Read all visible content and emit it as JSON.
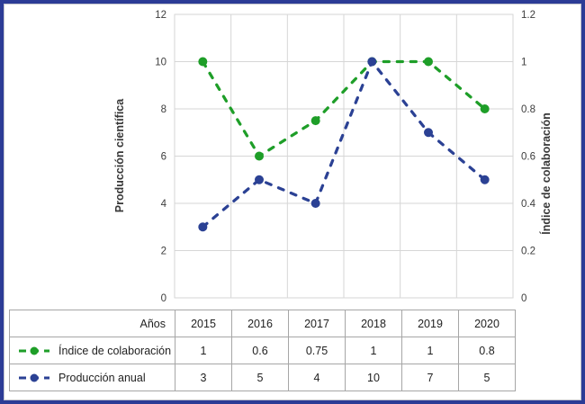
{
  "chart": {
    "left_axis_title": "Producción científica",
    "right_axis_title": "Índice de colaboración",
    "left_tick_labels": [
      "0",
      "2",
      "4",
      "6",
      "8",
      "10",
      "12"
    ],
    "right_tick_labels": [
      "0",
      "0.2",
      "0.4",
      "0.6",
      "0.8",
      "1",
      "1.2"
    ]
  },
  "chart_data": {
    "type": "line",
    "categories": [
      "2015",
      "2016",
      "2017",
      "2018",
      "2019",
      "2020"
    ],
    "series": [
      {
        "name": "Índice de colaboración",
        "axis": "right",
        "color": "#1e9e28",
        "line_style": "dashed",
        "marker": "circle",
        "values": [
          1,
          0.6,
          0.75,
          1,
          1,
          0.8
        ]
      },
      {
        "name": "Producción anual",
        "axis": "left",
        "color": "#2b4194",
        "line_style": "dashed",
        "marker": "circle",
        "values": [
          3,
          5,
          4,
          10,
          7,
          5
        ]
      }
    ],
    "title": "",
    "xlabel": "Años",
    "ylabel_left": "Producción científica",
    "ylabel_right": "Índice de colaboración",
    "ylim_left": [
      0,
      12
    ],
    "ylim_right": [
      0,
      1.2
    ],
    "grid": true,
    "legend_position": "table-below"
  },
  "table": {
    "row_header_label": "Años",
    "year_columns": [
      "2015",
      "2016",
      "2017",
      "2018",
      "2019",
      "2020"
    ],
    "rows": [
      {
        "label": "Índice de colaboración",
        "series_color": "#1e9e28",
        "values": [
          "1",
          "0.6",
          "0.75",
          "1",
          "1",
          "0.8"
        ]
      },
      {
        "label": "Producción anual",
        "series_color": "#2b4194",
        "values": [
          "3",
          "5",
          "4",
          "10",
          "7",
          "5"
        ]
      }
    ]
  },
  "colors": {
    "green_series": "#1e9e28",
    "blue_series": "#2b4194",
    "frame_border": "#2c3c96",
    "gridline": "#d6d6d6",
    "table_border": "#a6a6a6",
    "tick_text": "#3d3d3d"
  }
}
